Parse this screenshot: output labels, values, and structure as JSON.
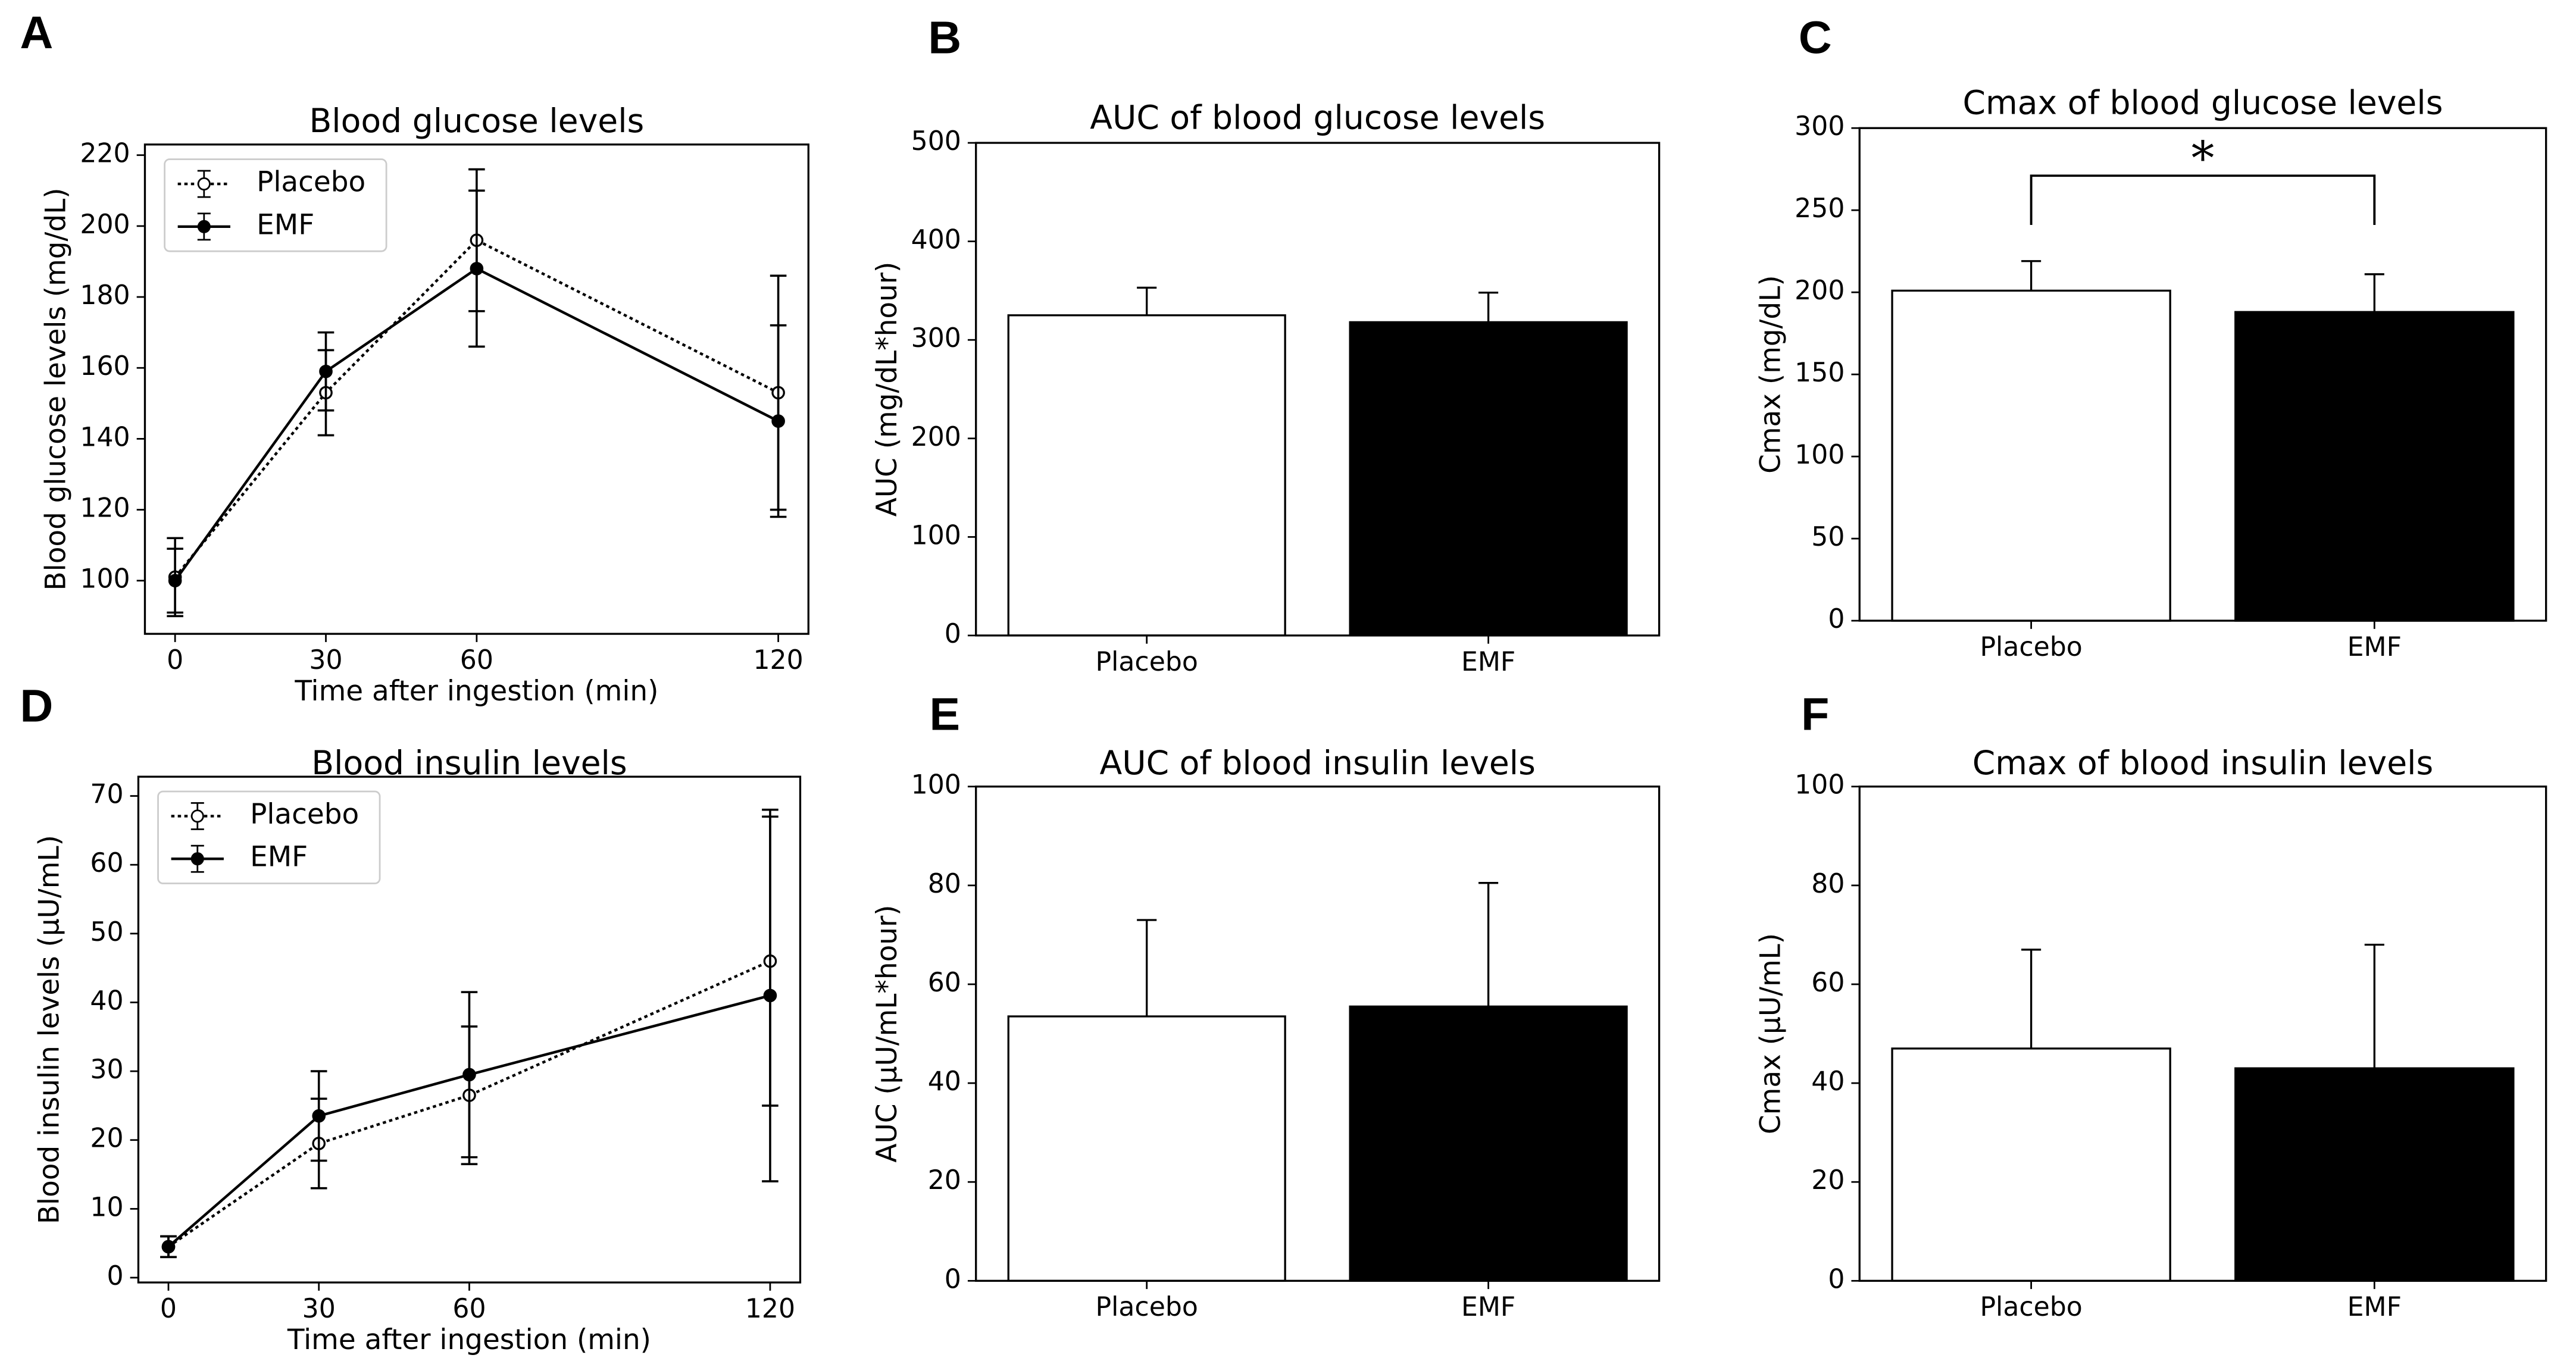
{
  "chart_data": [
    {
      "panel": "A",
      "type": "line",
      "title": "Blood glucose levels",
      "xlabel": "Time after ingestion (min)",
      "ylabel": "Blood glucose levels (mg/dL)",
      "x": [
        0,
        30,
        60,
        120
      ],
      "xlim": [
        -6,
        126
      ],
      "xticks": [
        0,
        30,
        60,
        120
      ],
      "ylim": [
        85,
        223
      ],
      "yticks": [
        100,
        120,
        140,
        160,
        180,
        200,
        220
      ],
      "legend": "upper left",
      "series": [
        {
          "name": "Placebo",
          "color": "#000000",
          "line_style": "dotted",
          "marker_fill": "#ffffff",
          "values": [
            101,
            153,
            196,
            153
          ],
          "errors": [
            11,
            12,
            20,
            33
          ]
        },
        {
          "name": "EMF",
          "color": "#000000",
          "line_style": "solid",
          "marker_fill": "#000000",
          "values": [
            100,
            159,
            188,
            145
          ],
          "errors": [
            9,
            11,
            22,
            27
          ]
        }
      ]
    },
    {
      "panel": "B",
      "type": "bar",
      "title": "AUC of blood glucose levels",
      "ylabel": "AUC (mg/dL*hour)",
      "categories": [
        "Placebo",
        "EMF"
      ],
      "values": [
        325,
        318
      ],
      "errors": [
        28,
        30
      ],
      "colors": [
        "#ffffff",
        "#000000"
      ],
      "ylim": [
        0,
        500
      ],
      "yticks": [
        0,
        100,
        200,
        300,
        400,
        500
      ]
    },
    {
      "panel": "C",
      "type": "bar",
      "title": "Cmax of blood glucose levels",
      "ylabel": "Cmax (mg/dL)",
      "categories": [
        "Placebo",
        "EMF"
      ],
      "values": [
        201,
        188
      ],
      "errors": [
        18,
        23
      ],
      "colors": [
        "#ffffff",
        "#000000"
      ],
      "ylim": [
        0,
        300
      ],
      "yticks": [
        0,
        50,
        100,
        150,
        200,
        250,
        300
      ],
      "significance": "*"
    },
    {
      "panel": "D",
      "type": "line",
      "title": "Blood insulin levels",
      "xlabel": "Time after ingestion (min)",
      "ylabel": "Blood insulin levels (μU/mL)",
      "x": [
        0,
        30,
        60,
        120
      ],
      "xlim": [
        -6,
        126
      ],
      "xticks": [
        0,
        30,
        60,
        120
      ],
      "ylim": [
        -0.7,
        72.8
      ],
      "yticks": [
        0,
        10,
        20,
        30,
        40,
        50,
        60,
        70
      ],
      "legend": "upper left",
      "series": [
        {
          "name": "Placebo",
          "color": "#000000",
          "line_style": "dotted",
          "marker_fill": "#ffffff",
          "values": [
            4.5,
            19.5,
            26.5,
            46
          ],
          "errors": [
            1.5,
            6.5,
            10,
            21
          ]
        },
        {
          "name": "EMF",
          "color": "#000000",
          "line_style": "solid",
          "marker_fill": "#000000",
          "values": [
            4.5,
            23.5,
            29.5,
            41
          ],
          "errors": [
            1.5,
            6.5,
            12,
            27
          ]
        }
      ]
    },
    {
      "panel": "E",
      "type": "bar",
      "title": "AUC of blood insulin levels",
      "ylabel": "AUC (μU/mL*hour)",
      "categories": [
        "Placebo",
        "EMF"
      ],
      "values": [
        53.5,
        55.5
      ],
      "errors": [
        19.5,
        25
      ],
      "colors": [
        "#ffffff",
        "#000000"
      ],
      "ylim": [
        0,
        100
      ],
      "yticks": [
        0,
        20,
        40,
        60,
        80,
        100
      ]
    },
    {
      "panel": "F",
      "type": "bar",
      "title": "Cmax of blood insulin levels",
      "ylabel": "Cmax (μU/mL)",
      "categories": [
        "Placebo",
        "EMF"
      ],
      "values": [
        47,
        43
      ],
      "errors": [
        20,
        25
      ],
      "colors": [
        "#ffffff",
        "#000000"
      ],
      "ylim": [
        0,
        100
      ],
      "yticks": [
        0,
        20,
        40,
        60,
        80,
        100
      ]
    }
  ]
}
